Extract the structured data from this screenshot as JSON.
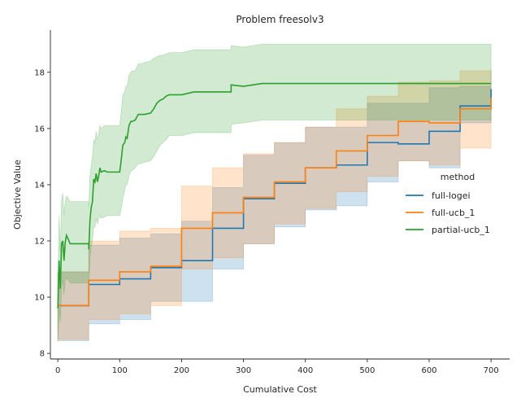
{
  "chart_data": {
    "type": "line",
    "title": "Problem freesolv3",
    "xlabel": "Cumulative Cost",
    "ylabel": "Objective Value",
    "xlim": [
      -12,
      730
    ],
    "ylim": [
      7.8,
      19.5
    ],
    "xticks": [
      0,
      100,
      200,
      300,
      400,
      500,
      600,
      700
    ],
    "yticks": [
      8,
      10,
      12,
      14,
      16,
      18
    ],
    "grid": false,
    "legend": {
      "title": "method",
      "placement": "center-right"
    },
    "series": [
      {
        "name": "full-logei",
        "color": "#1f77b4",
        "x": [
          0,
          50,
          50,
          100,
          100,
          150,
          150,
          200,
          200,
          250,
          250,
          300,
          300,
          350,
          350,
          400,
          400,
          450,
          450,
          500,
          500,
          550,
          550,
          600,
          600,
          650,
          650,
          700,
          700
        ],
        "y": [
          9.7,
          9.7,
          10.45,
          10.45,
          10.65,
          10.65,
          11.05,
          11.05,
          11.3,
          11.3,
          12.45,
          12.45,
          13.5,
          13.5,
          14.05,
          14.05,
          14.6,
          14.6,
          14.7,
          14.7,
          15.5,
          15.5,
          15.45,
          15.45,
          15.9,
          15.9,
          16.8,
          16.8,
          17.4
        ],
        "lower": [
          8.45,
          8.45,
          9.05,
          9.05,
          9.2,
          9.2,
          9.85,
          9.85,
          9.85,
          9.85,
          11.0,
          11.0,
          11.9,
          11.9,
          12.5,
          12.5,
          13.1,
          13.1,
          13.25,
          13.25,
          14.1,
          14.1,
          14.85,
          14.85,
          14.6,
          14.6,
          16.2,
          16.2,
          16.2
        ],
        "upper": [
          10.9,
          10.9,
          11.85,
          11.85,
          12.1,
          12.1,
          12.25,
          12.25,
          12.7,
          12.7,
          13.9,
          13.9,
          15.05,
          15.05,
          15.5,
          15.5,
          16.05,
          16.05,
          16.05,
          16.05,
          16.9,
          16.9,
          16.9,
          16.9,
          17.45,
          17.45,
          17.5,
          17.5,
          18.1
        ]
      },
      {
        "name": "full-ucb_1",
        "color": "#ff7f0e",
        "x": [
          0,
          50,
          50,
          100,
          100,
          150,
          150,
          200,
          200,
          250,
          250,
          300,
          300,
          350,
          350,
          400,
          400,
          450,
          450,
          500,
          500,
          550,
          550,
          600,
          600,
          650,
          650,
          700,
          700
        ],
        "y": [
          9.7,
          9.7,
          10.6,
          10.6,
          10.9,
          10.9,
          11.1,
          11.1,
          12.45,
          12.45,
          13.0,
          13.0,
          13.55,
          13.55,
          14.1,
          14.1,
          14.6,
          14.6,
          15.2,
          15.2,
          15.75,
          15.75,
          16.25,
          16.25,
          16.2,
          16.2,
          16.7,
          16.7,
          17.1
        ],
        "lower": [
          8.5,
          8.5,
          9.2,
          9.2,
          9.4,
          9.4,
          9.7,
          9.7,
          11.0,
          11.0,
          11.4,
          11.4,
          11.9,
          11.9,
          12.6,
          12.6,
          13.15,
          13.15,
          13.75,
          13.75,
          14.3,
          14.3,
          14.85,
          14.85,
          14.7,
          14.7,
          15.3,
          15.3,
          15.3
        ],
        "upper": [
          10.9,
          10.9,
          12.0,
          12.0,
          12.35,
          12.35,
          12.45,
          12.45,
          13.95,
          13.95,
          14.6,
          14.6,
          15.1,
          15.1,
          15.5,
          15.5,
          16.05,
          16.05,
          16.7,
          16.7,
          17.15,
          17.15,
          17.65,
          17.65,
          17.7,
          17.7,
          18.05,
          18.05,
          18.1
        ]
      },
      {
        "name": "partial-ucb_1",
        "color": "#2ca02c",
        "x": [
          0,
          2,
          4,
          6,
          8,
          10,
          12,
          14,
          20,
          50,
          50,
          52,
          54,
          56,
          58,
          60,
          62,
          64,
          66,
          68,
          70,
          75,
          80,
          100,
          102,
          105,
          108,
          110,
          112,
          115,
          118,
          120,
          125,
          130,
          135,
          140,
          150,
          155,
          160,
          165,
          170,
          175,
          180,
          200,
          210,
          220,
          230,
          280,
          280,
          300,
          330,
          700
        ],
        "y": [
          9.6,
          11.3,
          10.3,
          11.9,
          12.0,
          11.3,
          11.95,
          12.2,
          11.9,
          11.9,
          11.7,
          12.75,
          13.2,
          13.4,
          14.2,
          14.1,
          14.4,
          14.1,
          14.3,
          14.6,
          14.45,
          14.5,
          14.45,
          14.45,
          14.8,
          15.4,
          15.5,
          15.7,
          15.65,
          16.1,
          16.25,
          16.25,
          16.3,
          16.5,
          16.5,
          16.5,
          16.55,
          16.7,
          16.9,
          17.0,
          17.05,
          17.15,
          17.2,
          17.2,
          17.25,
          17.3,
          17.3,
          17.3,
          17.55,
          17.5,
          17.6,
          17.6
        ],
        "lower": [
          8.4,
          9.6,
          9.1,
          10.3,
          10.6,
          10.1,
          10.6,
          10.7,
          10.5,
          10.5,
          10.2,
          11.4,
          11.8,
          12.0,
          12.5,
          12.5,
          12.8,
          12.6,
          12.8,
          12.9,
          12.8,
          12.85,
          12.9,
          12.9,
          13.1,
          13.5,
          13.8,
          14.0,
          14.0,
          14.3,
          14.5,
          14.5,
          14.6,
          14.75,
          14.75,
          14.8,
          14.85,
          15.0,
          15.2,
          15.4,
          15.5,
          15.6,
          15.75,
          15.75,
          15.8,
          15.85,
          15.85,
          15.85,
          16.15,
          16.2,
          16.3,
          16.3
        ],
        "upper": [
          10.3,
          12.9,
          11.6,
          13.4,
          13.7,
          12.9,
          13.4,
          13.6,
          13.4,
          13.4,
          13.2,
          14.3,
          14.7,
          15.0,
          15.6,
          15.5,
          15.9,
          15.6,
          15.8,
          16.1,
          16.0,
          16.1,
          16.1,
          16.1,
          16.5,
          17.2,
          17.3,
          17.5,
          17.5,
          17.9,
          18.0,
          18.05,
          18.05,
          18.3,
          18.3,
          18.35,
          18.4,
          18.5,
          18.55,
          18.6,
          18.6,
          18.65,
          18.7,
          18.7,
          18.75,
          18.8,
          18.8,
          18.8,
          18.95,
          18.9,
          19.0,
          19.0
        ]
      }
    ]
  }
}
